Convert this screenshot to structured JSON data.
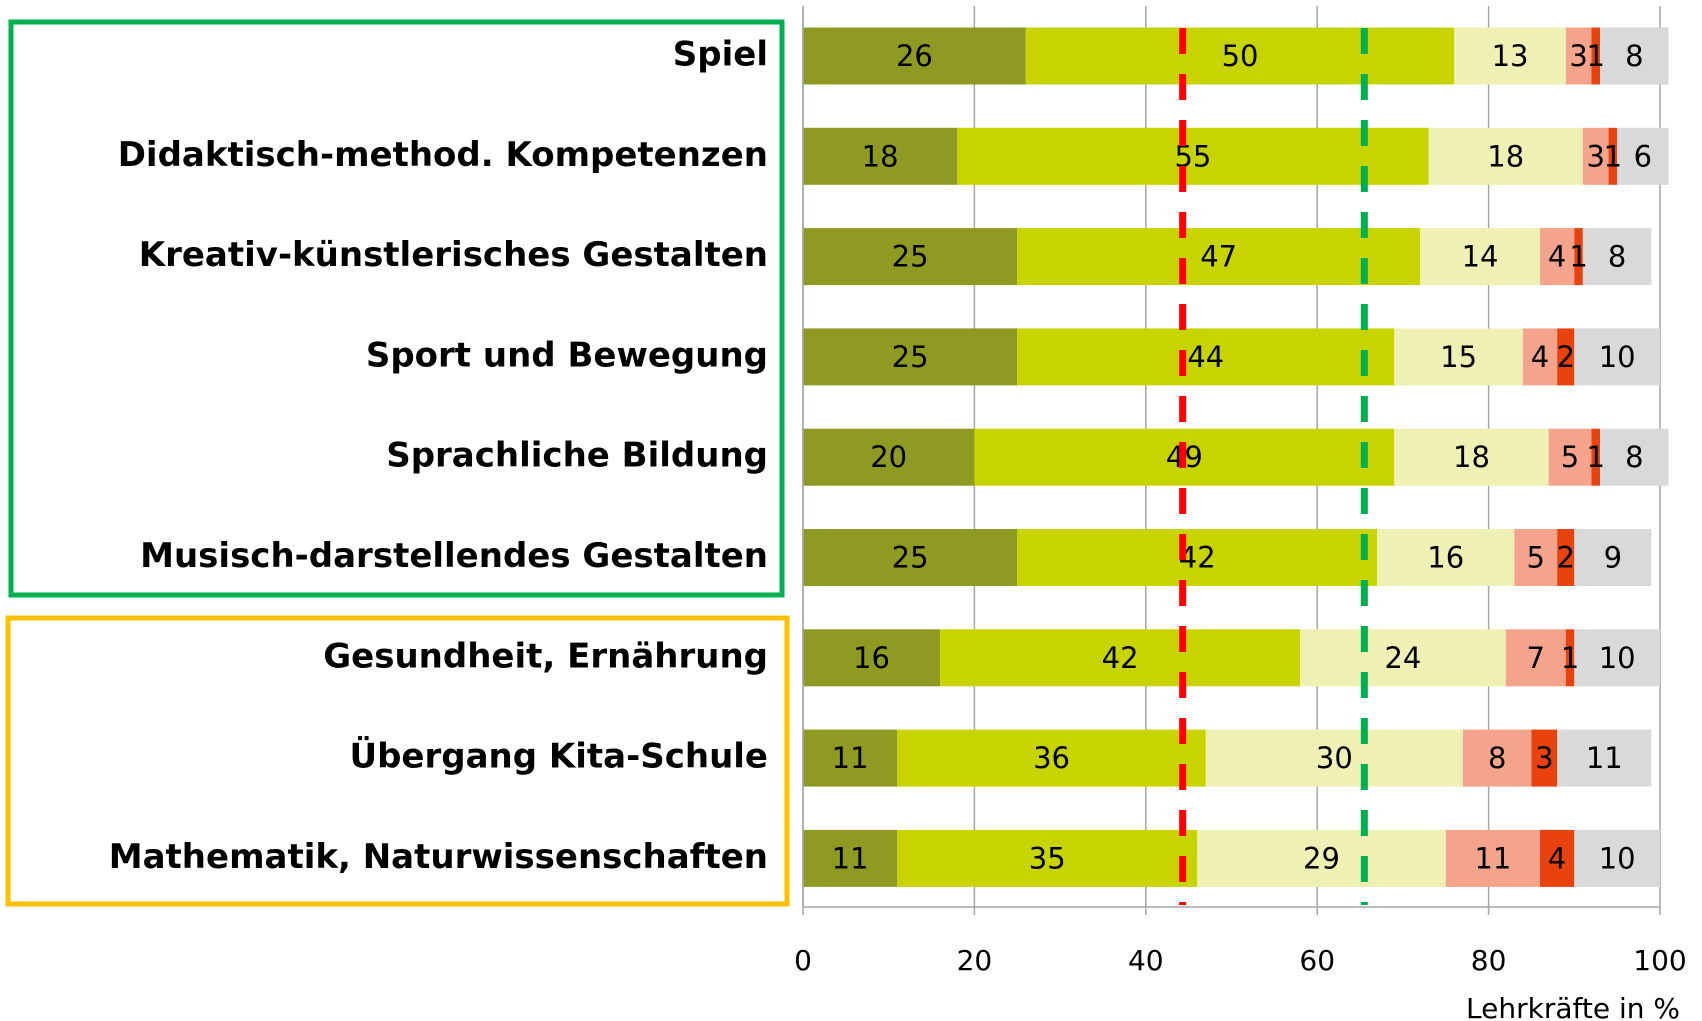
{
  "chart_data": {
    "type": "stacked_barh",
    "categories": [
      "Spiel",
      "Didaktisch-method. Kompetenzen",
      "Kreativ-künstlerisches Gestalten",
      "Sport und Bewegung",
      "Sprachliche Bildung",
      "Musisch-darstellendes Gestalten",
      "Gesundheit, Ernährung",
      "Übergang Kita-Schule",
      "Mathematik, Naturwissenschaften"
    ],
    "series": [
      {
        "color": "#8f9a22",
        "values": [
          26,
          18,
          25,
          25,
          20,
          25,
          16,
          11,
          11
        ]
      },
      {
        "color": "#c8d400",
        "values": [
          50,
          55,
          47,
          44,
          49,
          42,
          42,
          36,
          35
        ]
      },
      {
        "color": "#eef0b4",
        "values": [
          13,
          18,
          14,
          15,
          18,
          16,
          24,
          30,
          29
        ]
      },
      {
        "color": "#f4a48c",
        "values": [
          3,
          3,
          4,
          4,
          5,
          5,
          7,
          8,
          11
        ]
      },
      {
        "color": "#e8420f",
        "values": [
          1,
          1,
          1,
          2,
          1,
          2,
          1,
          3,
          4
        ]
      },
      {
        "color": "#d9d9d9",
        "values": [
          8,
          6,
          8,
          10,
          8,
          9,
          10,
          11,
          10
        ]
      }
    ],
    "xlim": [
      0,
      100
    ],
    "xticks": [
      0,
      20,
      40,
      60,
      80,
      100
    ],
    "x_label": "Lehrkräfte in %",
    "reference_lines": [
      {
        "value": 44.3,
        "color": "#ff0000"
      },
      {
        "value": 65.5,
        "color": "#00b050"
      }
    ],
    "grid": true
  }
}
